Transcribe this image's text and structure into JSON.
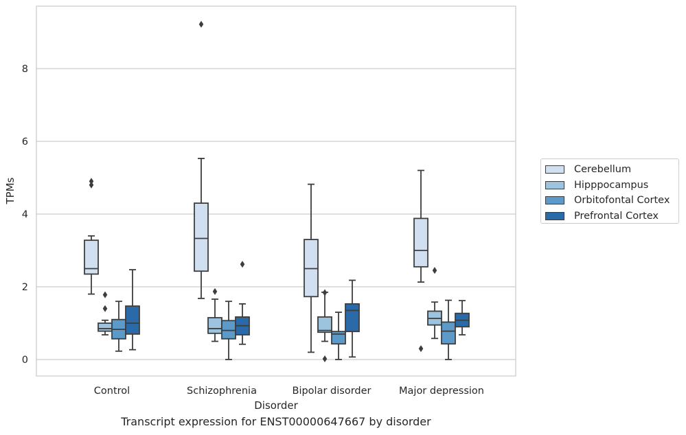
{
  "chart_data": {
    "type": "box",
    "title": "Transcript expression for ENST00000647667 by disorder",
    "xlabel": "Disorder",
    "ylabel": "TPMs",
    "ylim": [
      -0.45,
      9.75
    ],
    "yticks": [
      0,
      2,
      4,
      6,
      8
    ],
    "grid": true,
    "legend_position": "right",
    "categories": [
      "Control",
      "Schizophrenia",
      "Bipolar disorder",
      "Major depression"
    ],
    "series": [
      {
        "name": "Cerebellum",
        "color": "#d1e0f1",
        "boxes": [
          {
            "whislo": 1.8,
            "q1": 2.35,
            "med": 2.5,
            "q3": 3.28,
            "whishi": 3.4,
            "fliers": [
              4.8,
              4.9
            ]
          },
          {
            "whislo": 1.68,
            "q1": 2.43,
            "med": 3.33,
            "q3": 4.3,
            "whishi": 5.53,
            "fliers": [
              9.22
            ]
          },
          {
            "whislo": 0.2,
            "q1": 1.73,
            "med": 2.5,
            "q3": 3.3,
            "whishi": 4.82,
            "fliers": []
          },
          {
            "whislo": 2.13,
            "q1": 2.55,
            "med": 3.0,
            "q3": 3.88,
            "whishi": 5.2,
            "fliers": [
              0.3
            ]
          }
        ]
      },
      {
        "name": "Hipppocampus",
        "color": "#9dc4de",
        "boxes": [
          {
            "whislo": 0.68,
            "q1": 0.78,
            "med": 0.85,
            "q3": 1.0,
            "whishi": 1.08,
            "fliers": [
              1.4,
              1.78
            ]
          },
          {
            "whislo": 0.5,
            "q1": 0.72,
            "med": 0.85,
            "q3": 1.15,
            "whishi": 1.66,
            "fliers": [
              1.87
            ]
          },
          {
            "whislo": 0.5,
            "q1": 0.75,
            "med": 0.8,
            "q3": 1.17,
            "whishi": 1.85,
            "fliers": [
              0.02,
              1.84
            ]
          },
          {
            "whislo": 0.58,
            "q1": 0.95,
            "med": 1.13,
            "q3": 1.33,
            "whishi": 1.58,
            "fliers": [
              2.45
            ]
          }
        ]
      },
      {
        "name": "Orbitofontal Cortex",
        "color": "#5b9ac9",
        "boxes": [
          {
            "whislo": 0.23,
            "q1": 0.57,
            "med": 0.83,
            "q3": 1.1,
            "whishi": 1.6,
            "fliers": []
          },
          {
            "whislo": 0.0,
            "q1": 0.57,
            "med": 0.8,
            "q3": 1.07,
            "whishi": 1.6,
            "fliers": []
          },
          {
            "whislo": 0.0,
            "q1": 0.43,
            "med": 0.7,
            "q3": 0.77,
            "whishi": 1.3,
            "fliers": []
          },
          {
            "whislo": 0.0,
            "q1": 0.43,
            "med": 0.78,
            "q3": 1.03,
            "whishi": 1.63,
            "fliers": []
          }
        ]
      },
      {
        "name": "Prefrontal Cortex",
        "color": "#2b6aa8",
        "boxes": [
          {
            "whislo": 0.27,
            "q1": 0.7,
            "med": 1.0,
            "q3": 1.47,
            "whishi": 2.47,
            "fliers": []
          },
          {
            "whislo": 0.42,
            "q1": 0.68,
            "med": 0.93,
            "q3": 1.17,
            "whishi": 1.53,
            "fliers": [
              2.62
            ]
          },
          {
            "whislo": 0.07,
            "q1": 0.77,
            "med": 1.35,
            "q3": 1.53,
            "whishi": 2.18,
            "fliers": []
          },
          {
            "whislo": 0.68,
            "q1": 0.9,
            "med": 1.08,
            "q3": 1.27,
            "whishi": 1.62,
            "fliers": []
          }
        ]
      }
    ]
  }
}
